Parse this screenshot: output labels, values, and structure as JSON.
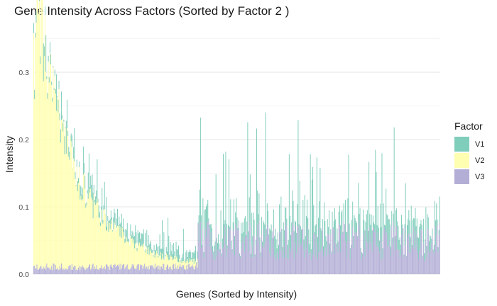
{
  "chart_data": {
    "type": "bar",
    "stacked": true,
    "title": "Gene Intensity Across Factors (Sorted by Factor 2 )",
    "xlabel": "Genes (Sorted by Intensity)",
    "ylabel": "Intensity",
    "ylim": [
      0,
      0.36
    ],
    "y_ticks": [
      0.0,
      0.1,
      0.2,
      0.3
    ],
    "y_tick_labels": [
      "0.0",
      "0.1",
      "0.2",
      "0.3"
    ],
    "x_tick_labels_shown": false,
    "grid": true,
    "legend": {
      "title": "Factor",
      "position": "right"
    },
    "n_genes": 500,
    "colors": {
      "V1": "#7fcdbb",
      "V2": "#ffffb2",
      "V3": "#b3aed6"
    },
    "series": [
      {
        "name": "V1",
        "description_profile": {
          "region1_range": [
            0.0,
            0.06
          ],
          "region2_typical": [
            0.03,
            0.09
          ],
          "region2_peaks": [
            0.1,
            0.22
          ]
        }
      },
      {
        "name": "V2",
        "values_profile": {
          "start": 0.34,
          "at_10pct": 0.12,
          "at_25pct": 0.06,
          "at_40pct": 0.0
        }
      },
      {
        "name": "V3",
        "values_profile": {
          "region1": [
            0.005,
            0.015
          ],
          "region2": [
            0.02,
            0.08
          ]
        }
      }
    ]
  }
}
